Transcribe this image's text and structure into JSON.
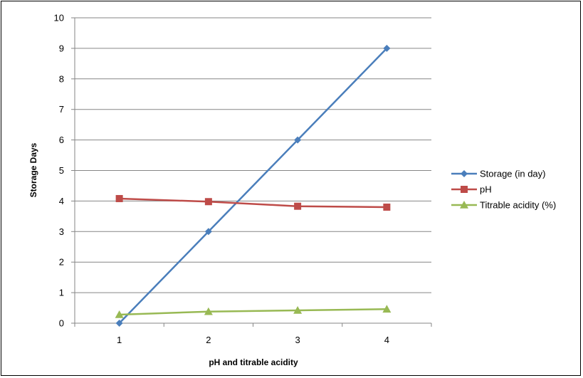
{
  "chart_data": {
    "type": "line",
    "title": "",
    "xlabel": "pH and titrable acidity",
    "ylabel": "Storage  Days",
    "x": [
      1,
      2,
      3,
      4
    ],
    "categories": [
      "1",
      "2",
      "3",
      "4"
    ],
    "ylim": [
      0,
      10
    ],
    "yticks": [
      0,
      1,
      2,
      3,
      4,
      5,
      6,
      7,
      8,
      9,
      10
    ],
    "grid": true,
    "legend_position": "right",
    "series": [
      {
        "name": "Storage (in day)",
        "values": [
          0,
          3,
          6,
          9
        ],
        "color": "#4A7EBB",
        "marker": "diamond"
      },
      {
        "name": "pH",
        "values": [
          4.08,
          3.98,
          3.83,
          3.8
        ],
        "color": "#BE4B48",
        "marker": "square"
      },
      {
        "name": "Titrable acidity (%)",
        "values": [
          0.28,
          0.38,
          0.42,
          0.46
        ],
        "color": "#98B954",
        "marker": "triangle"
      }
    ]
  }
}
